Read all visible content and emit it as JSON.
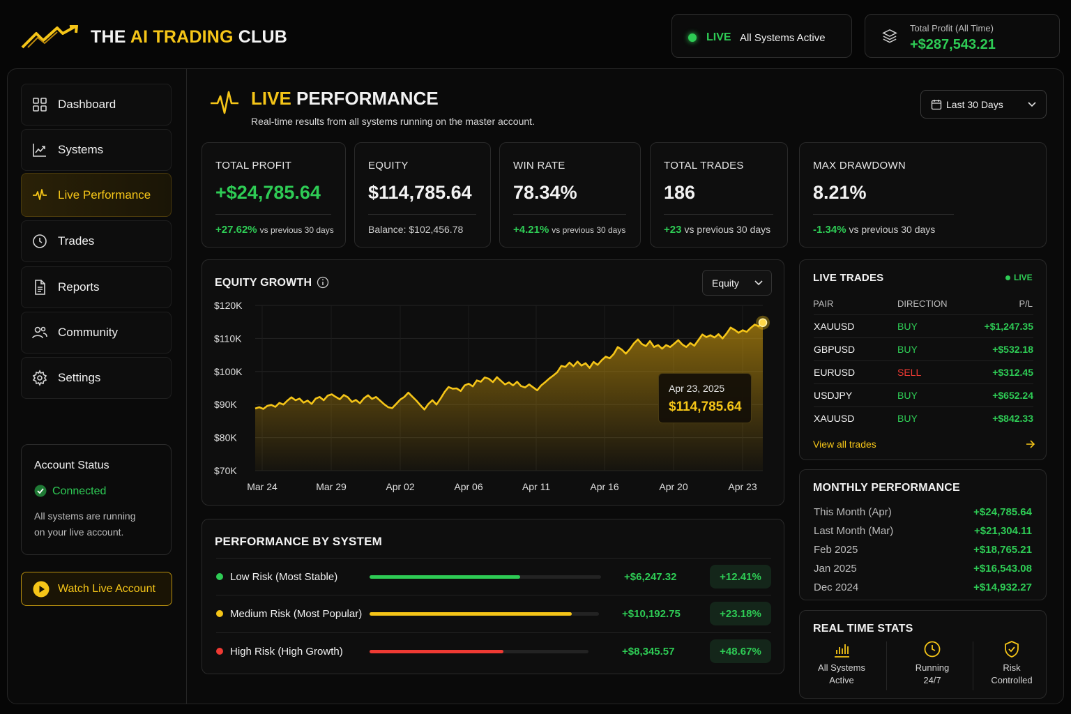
{
  "brand": {
    "prefix": "THE ",
    "highlight": "AI TRADING",
    "suffix": " CLUB"
  },
  "header": {
    "status_live": "LIVE",
    "status_text": "All Systems Active",
    "profit_label": "Total Profit (All Time)",
    "profit_value": "+$287,543.21"
  },
  "sidebar": {
    "items": [
      {
        "label": "Dashboard",
        "icon": "grid-icon"
      },
      {
        "label": "Systems",
        "icon": "chart-line-icon"
      },
      {
        "label": "Live Performance",
        "icon": "pulse-icon",
        "active": true
      },
      {
        "label": "Trades",
        "icon": "clock-icon"
      },
      {
        "label": "Reports",
        "icon": "document-icon"
      },
      {
        "label": "Community",
        "icon": "users-icon"
      },
      {
        "label": "Settings",
        "icon": "gear-icon"
      }
    ],
    "account": {
      "title": "Account Status",
      "status": "Connected",
      "desc_line1": "All systems are running",
      "desc_line2": "on your live account."
    },
    "watch_label": "Watch Live Account"
  },
  "page": {
    "title_highlight": "LIVE",
    "title_rest": " PERFORMANCE",
    "subtitle": "Real-time results from all systems running on the master account.",
    "range_label": "Last 30 Days"
  },
  "stats": [
    {
      "label": "TOTAL PROFIT",
      "value": "+$24,785.64",
      "delta": "+27.62%",
      "note": "vs previous 30 days"
    },
    {
      "label": "EQUITY",
      "value": "$114,785.64",
      "note": "Balance: $102,456.78"
    },
    {
      "label": "WIN RATE",
      "value": "78.34%",
      "delta": "+4.21%",
      "note": "vs previous 30 days"
    },
    {
      "label": "TOTAL TRADES",
      "value": "186",
      "delta": "+23",
      "note": "vs previous 30 days"
    },
    {
      "label": "MAX DRAWDOWN",
      "value": "8.21%",
      "delta": "-1.34%",
      "note": "vs previous 30 days"
    }
  ],
  "equity_chart": {
    "title": "EQUITY GROWTH",
    "selector": "Equity",
    "tooltip_date": "Apr 23, 2025",
    "tooltip_value": "$114,785.64"
  },
  "chart_data": {
    "type": "area",
    "title": "EQUITY GROWTH",
    "y_ticks": [
      "$120K",
      "$110K",
      "$100K",
      "$90K",
      "$80K",
      "$70K"
    ],
    "x_ticks": [
      "Mar 24",
      "Mar 29",
      "Apr 02",
      "Apr 06",
      "Apr 11",
      "Apr 16",
      "Apr 20",
      "Apr 23"
    ],
    "ylim": [
      70000,
      120000
    ],
    "grid": true,
    "series": [
      {
        "values": [
          88800,
          89200,
          88700,
          89600,
          89900,
          89300,
          90500,
          90000,
          91200,
          92200,
          91300,
          91800,
          90600,
          91200,
          90200,
          91800,
          92300,
          91300,
          92700,
          93100,
          92300,
          91600,
          92900,
          92200,
          90800,
          91400,
          90400,
          91900,
          92800,
          91700,
          92300,
          91200,
          90100,
          89200,
          88900,
          90200,
          91500,
          92300,
          93600,
          92400,
          91200,
          89800,
          88500,
          90200,
          91300,
          90000,
          91800,
          93800,
          95300,
          94800,
          94900,
          94100,
          95800,
          96300,
          95500,
          97300,
          96900,
          98200,
          97800,
          96800,
          98300,
          97200,
          96100,
          96700,
          95800,
          96900,
          95600,
          95200,
          96100,
          95200,
          94300,
          95800,
          96800,
          97900,
          98800,
          99800,
          101700,
          101400,
          102700,
          101600,
          103000,
          101800,
          102500,
          101100,
          102900,
          102000,
          103400,
          104500,
          104000,
          105300,
          107400,
          106600,
          105400,
          106800,
          108500,
          109700,
          108300,
          107700,
          109200,
          107400,
          108000,
          106900,
          108000,
          107400,
          108400,
          109500,
          108200,
          107400,
          108600,
          107800,
          109500,
          111200,
          110400,
          111000,
          110300,
          111300,
          110000,
          111500,
          113300,
          112600,
          111700,
          112500,
          112000,
          113200,
          114200,
          113700,
          114785
        ]
      }
    ]
  },
  "systems": {
    "title": "PERFORMANCE BY SYSTEM",
    "rows": [
      {
        "name": "Low Risk (Most Stable)",
        "amount": "+$6,247.32",
        "pct": "+12.41%",
        "fill": 0.65,
        "color": "#2ecc55"
      },
      {
        "name": "Medium Risk (Most Popular)",
        "amount": "+$10,192.75",
        "pct": "+23.18%",
        "fill": 0.88,
        "color": "#f5c518"
      },
      {
        "name": "High Risk (High Growth)",
        "amount": "+$8,345.57",
        "pct": "+48.67%",
        "fill": 0.61,
        "color": "#ef3a33"
      }
    ]
  },
  "live_trades": {
    "title": "LIVE TRADES",
    "badge": "LIVE",
    "headers": [
      "PAIR",
      "DIRECTION",
      "P/L"
    ],
    "rows": [
      {
        "pair": "XAUUSD",
        "dir": "BUY",
        "pl": "+$1,247.35"
      },
      {
        "pair": "GBPUSD",
        "dir": "BUY",
        "pl": "+$532.18"
      },
      {
        "pair": "EURUSD",
        "dir": "SELL",
        "pl": "+$312.45"
      },
      {
        "pair": "USDJPY",
        "dir": "BUY",
        "pl": "+$652.24"
      },
      {
        "pair": "XAUUSD",
        "dir": "BUY",
        "pl": "+$842.33"
      }
    ],
    "view_all": "View all trades"
  },
  "monthly": {
    "title": "MONTHLY PERFORMANCE",
    "rows": [
      {
        "month": "This Month (Apr)",
        "value": "+$24,785.64"
      },
      {
        "month": "Last Month (Mar)",
        "value": "+$21,304.11"
      },
      {
        "month": "Feb 2025",
        "value": "+$18,765.21"
      },
      {
        "month": "Jan 2025",
        "value": "+$16,543.08"
      },
      {
        "month": "Dec 2024",
        "value": "+$14,932.27"
      }
    ]
  },
  "realtime": {
    "title": "REAL TIME STATS",
    "items": [
      {
        "line1": "All Systems",
        "line2": "Active",
        "icon": "bar-chart-icon"
      },
      {
        "line1": "Running",
        "line2": "24/7",
        "icon": "clock-icon"
      },
      {
        "line1": "Risk",
        "line2": "Controlled",
        "icon": "shield-check-icon"
      }
    ]
  },
  "colors": {
    "accent": "#f5c518",
    "positive": "#2ecc55",
    "negative": "#ef3a33",
    "background": "#060606"
  }
}
